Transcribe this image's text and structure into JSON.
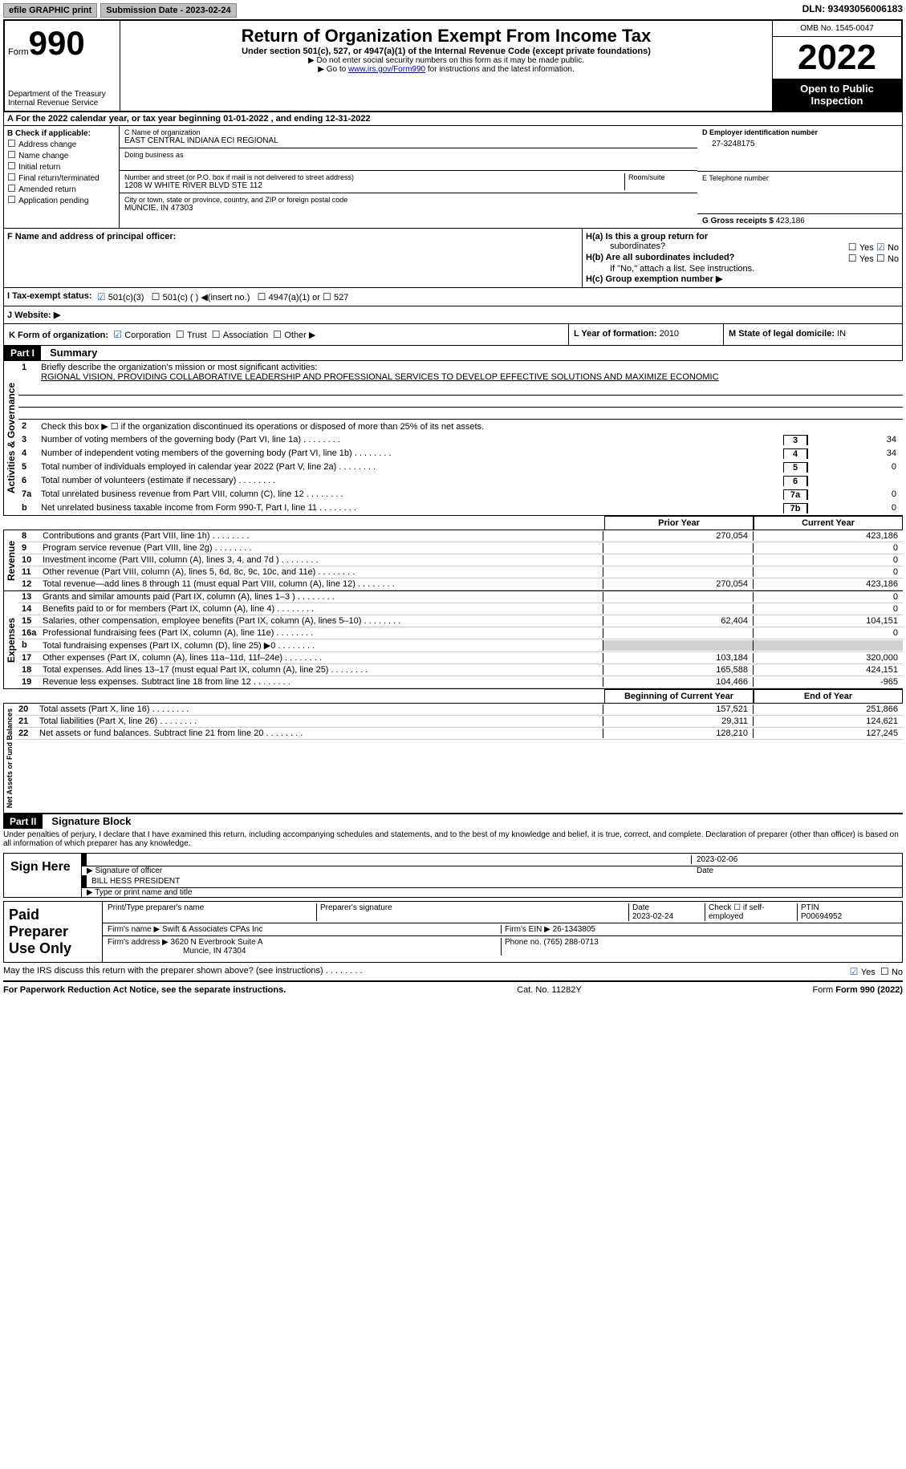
{
  "top": {
    "efile": "efile GRAPHIC print",
    "submission": "Submission Date - 2023-02-24",
    "dln": "DLN: 93493056006183"
  },
  "header": {
    "form_label": "Form",
    "form_num": "990",
    "dept": "Department of the Treasury",
    "irs": "Internal Revenue Service",
    "title": "Return of Organization Exempt From Income Tax",
    "subtitle": "Under section 501(c), 527, or 4947(a)(1) of the Internal Revenue Code (except private foundations)",
    "note1": "▶ Do not enter social security numbers on this form as it may be made public.",
    "note2_pre": "▶ Go to ",
    "note2_link": "www.irs.gov/Form990",
    "note2_post": " for instructions and the latest information.",
    "omb": "OMB No. 1545-0047",
    "year": "2022",
    "inspection": "Open to Public Inspection"
  },
  "secA": {
    "text": "A For the 2022 calendar year, or tax year beginning 01-01-2022    , and ending 12-31-2022"
  },
  "secB": {
    "title": "B Check if applicable:",
    "items": [
      "Address change",
      "Name change",
      "Initial return",
      "Final return/terminated",
      "Amended return",
      "Application pending"
    ]
  },
  "secC": {
    "name_lbl": "C Name of organization",
    "name": "EAST CENTRAL INDIANA ECI REGIONAL",
    "dba_lbl": "Doing business as",
    "addr_lbl": "Number and street (or P.O. box if mail is not delivered to street address)",
    "room_lbl": "Room/suite",
    "addr": "1208 W WHITE RIVER BLVD STE 112",
    "city_lbl": "City or town, state or province, country, and ZIP or foreign postal code",
    "city": "MUNCIE, IN  47303"
  },
  "secD": {
    "lbl": "D Employer identification number",
    "val": "27-3248175"
  },
  "secE": {
    "lbl": "E Telephone number"
  },
  "secG": {
    "lbl": "G Gross receipts $",
    "val": "423,186"
  },
  "secF": {
    "lbl": "F  Name and address of principal officer:"
  },
  "secH": {
    "a_lbl": "H(a)  Is this a group return for",
    "a_sub": "subordinates?",
    "b_lbl": "H(b)  Are all subordinates included?",
    "b_note": "If \"No,\" attach a list. See instructions.",
    "c_lbl": "H(c)  Group exemption number ▶",
    "yes": "Yes",
    "no": "No"
  },
  "secI": {
    "lbl": "I   Tax-exempt status:",
    "c3": "501(c)(3)",
    "c": "501(c) (  ) ◀(insert no.)",
    "a1": "4947(a)(1) or",
    "s527": "527"
  },
  "secJ": {
    "lbl": "J   Website: ▶"
  },
  "secK": {
    "lbl": "K Form of organization:",
    "corp": "Corporation",
    "trust": "Trust",
    "assoc": "Association",
    "other": "Other ▶"
  },
  "secL": {
    "lbl": "L Year of formation:",
    "val": "2010"
  },
  "secM": {
    "lbl": "M State of legal domicile:",
    "val": "IN"
  },
  "part1": {
    "hdr": "Part I",
    "title": "Summary",
    "vert1": "Activities & Governance",
    "l1_lbl": "Briefly describe the organization's mission or most significant activities:",
    "l1_txt": "RGIONAL VISION, PROVIDING COLLABORATIVE LEADERSHIP AND PROFESSIONAL SERVICES TO DEVELOP EFFECTIVE SOLUTIONS AND MAXIMIZE ECONOMIC",
    "l2": "Check this box ▶ ☐  if the organization discontinued its operations or disposed of more than 25% of its net assets.",
    "rows_gov": [
      {
        "n": "3",
        "t": "Number of voting members of the governing body (Part VI, line 1a)",
        "box": "3",
        "v": "34"
      },
      {
        "n": "4",
        "t": "Number of independent voting members of the governing body (Part VI, line 1b)",
        "box": "4",
        "v": "34"
      },
      {
        "n": "5",
        "t": "Total number of individuals employed in calendar year 2022 (Part V, line 2a)",
        "box": "5",
        "v": "0"
      },
      {
        "n": "6",
        "t": "Total number of volunteers (estimate if necessary)",
        "box": "6",
        "v": ""
      },
      {
        "n": "7a",
        "t": "Total unrelated business revenue from Part VIII, column (C), line 12",
        "box": "7a",
        "v": "0"
      },
      {
        "n": "b",
        "t": "Net unrelated business taxable income from Form 990-T, Part I, line 11",
        "box": "7b",
        "v": "0"
      }
    ],
    "py": "Prior Year",
    "cy": "Current Year",
    "vert2": "Revenue",
    "rows_rev": [
      {
        "n": "8",
        "t": "Contributions and grants (Part VIII, line 1h)",
        "py": "270,054",
        "cy": "423,186"
      },
      {
        "n": "9",
        "t": "Program service revenue (Part VIII, line 2g)",
        "py": "",
        "cy": "0"
      },
      {
        "n": "10",
        "t": "Investment income (Part VIII, column (A), lines 3, 4, and 7d )",
        "py": "",
        "cy": "0"
      },
      {
        "n": "11",
        "t": "Other revenue (Part VIII, column (A), lines 5, 6d, 8c, 9c, 10c, and 11e)",
        "py": "",
        "cy": "0"
      },
      {
        "n": "12",
        "t": "Total revenue—add lines 8 through 11 (must equal Part VIII, column (A), line 12)",
        "py": "270,054",
        "cy": "423,186"
      }
    ],
    "vert3": "Expenses",
    "rows_exp": [
      {
        "n": "13",
        "t": "Grants and similar amounts paid (Part IX, column (A), lines 1–3 )",
        "py": "",
        "cy": "0"
      },
      {
        "n": "14",
        "t": "Benefits paid to or for members (Part IX, column (A), line 4)",
        "py": "",
        "cy": "0"
      },
      {
        "n": "15",
        "t": "Salaries, other compensation, employee benefits (Part IX, column (A), lines 5–10)",
        "py": "62,404",
        "cy": "104,151"
      },
      {
        "n": "16a",
        "t": "Professional fundraising fees (Part IX, column (A), line 11e)",
        "py": "",
        "cy": "0"
      },
      {
        "n": "b",
        "t": "Total fundraising expenses (Part IX, column (D), line 25) ▶0",
        "py": "shade",
        "cy": "shade"
      },
      {
        "n": "17",
        "t": "Other expenses (Part IX, column (A), lines 11a–11d, 11f–24e)",
        "py": "103,184",
        "cy": "320,000"
      },
      {
        "n": "18",
        "t": "Total expenses. Add lines 13–17 (must equal Part IX, column (A), line 25)",
        "py": "165,588",
        "cy": "424,151"
      },
      {
        "n": "19",
        "t": "Revenue less expenses. Subtract line 18 from line 12",
        "py": "104,466",
        "cy": "-965"
      }
    ],
    "boy": "Beginning of Current Year",
    "eoy": "End of Year",
    "vert4": "Net Assets or Fund Balances",
    "rows_na": [
      {
        "n": "20",
        "t": "Total assets (Part X, line 16)",
        "py": "157,521",
        "cy": "251,866"
      },
      {
        "n": "21",
        "t": "Total liabilities (Part X, line 26)",
        "py": "29,311",
        "cy": "124,621"
      },
      {
        "n": "22",
        "t": "Net assets or fund balances. Subtract line 21 from line 20",
        "py": "128,210",
        "cy": "127,245"
      }
    ]
  },
  "part2": {
    "hdr": "Part II",
    "title": "Signature Block"
  },
  "penalties": "Under penalties of perjury, I declare that I have examined this return, including accompanying schedules and statements, and to the best of my knowledge and belief, it is true, correct, and complete. Declaration of preparer (other than officer) is based on all information of which preparer has any knowledge.",
  "sign": {
    "here": "Sign Here",
    "sig_lbl": "Signature of officer",
    "date_lbl": "Date",
    "date": "2023-02-06",
    "name": "BILL HESS PRESIDENT",
    "name_lbl": "Type or print name and title"
  },
  "prep": {
    "title": "Paid Preparer Use Only",
    "name_lbl": "Print/Type preparer's name",
    "sig_lbl": "Preparer's signature",
    "date_lbl": "Date",
    "date": "2023-02-24",
    "se_lbl": "Check ☐ if self-employed",
    "ptin_lbl": "PTIN",
    "ptin": "P00694952",
    "firm_lbl": "Firm's name   ▶",
    "firm": "Swift & Associates CPAs Inc",
    "ein_lbl": "Firm's EIN ▶",
    "ein": "26-1343805",
    "addr_lbl": "Firm's address ▶",
    "addr": "3620 N Everbrook Suite A",
    "addr2": "Muncie, IN  47304",
    "phone_lbl": "Phone no.",
    "phone": "(765) 288-0713"
  },
  "bottom": {
    "discuss": "May the IRS discuss this return with the preparer shown above? (see instructions)",
    "yes": "Yes",
    "no": "No",
    "pra": "For Paperwork Reduction Act Notice, see the separate instructions.",
    "cat": "Cat. No. 11282Y",
    "form": "Form 990 (2022)"
  }
}
